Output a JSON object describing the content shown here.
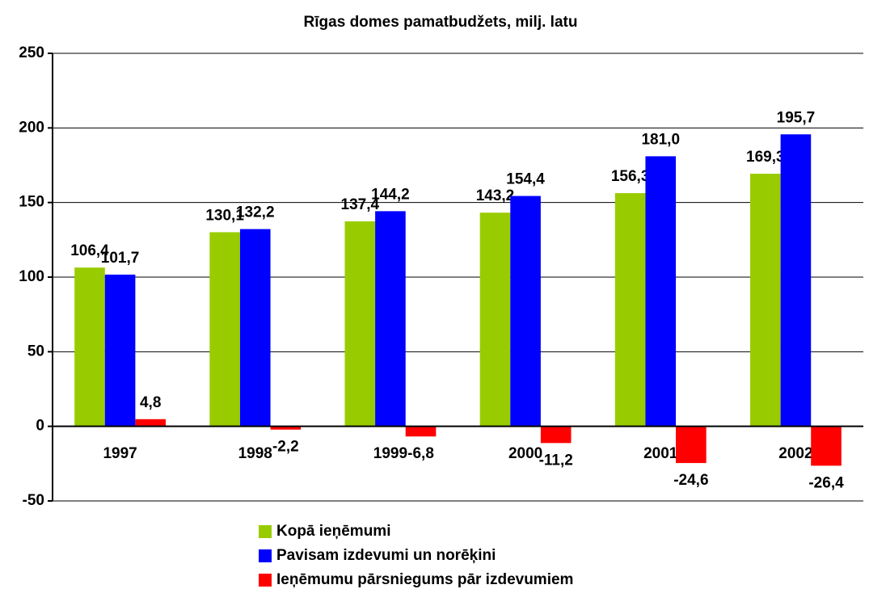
{
  "chart_data": {
    "type": "bar",
    "title": "Rīgas domes pamatbudžets, milj. latu",
    "categories": [
      "1997",
      "1998",
      "1999",
      "2000",
      "2001",
      "2002"
    ],
    "series": [
      {
        "name": "Kopā ieņēmumi",
        "color": "#99cc00",
        "values": [
          106.4,
          130.1,
          137.4,
          143.2,
          156.3,
          169.3
        ],
        "value_labels": [
          "106,4",
          "130,1",
          "137,4",
          "143,2",
          "156,3",
          "169,3"
        ]
      },
      {
        "name": "Pavisam izdevumi un norēķini",
        "color": "#0000ff",
        "values": [
          101.7,
          132.2,
          144.2,
          154.4,
          181.0,
          195.7
        ],
        "value_labels": [
          "101,7",
          "132,2",
          "144,2",
          "154,4",
          "181,0",
          "195,7"
        ]
      },
      {
        "name": "Ieņēmumu pārsniegums pār izdevumiem",
        "color": "#ff0000",
        "values": [
          4.8,
          -2.2,
          -6.8,
          -11.2,
          -24.6,
          -26.4
        ],
        "value_labels": [
          "4,8",
          "-2,2",
          "-6,8",
          "-11,2",
          "-24,6",
          "-26,4"
        ]
      }
    ],
    "ylim": [
      -50,
      250
    ],
    "yticks": [
      -50,
      0,
      50,
      100,
      150,
      200,
      250
    ],
    "grid": true
  }
}
